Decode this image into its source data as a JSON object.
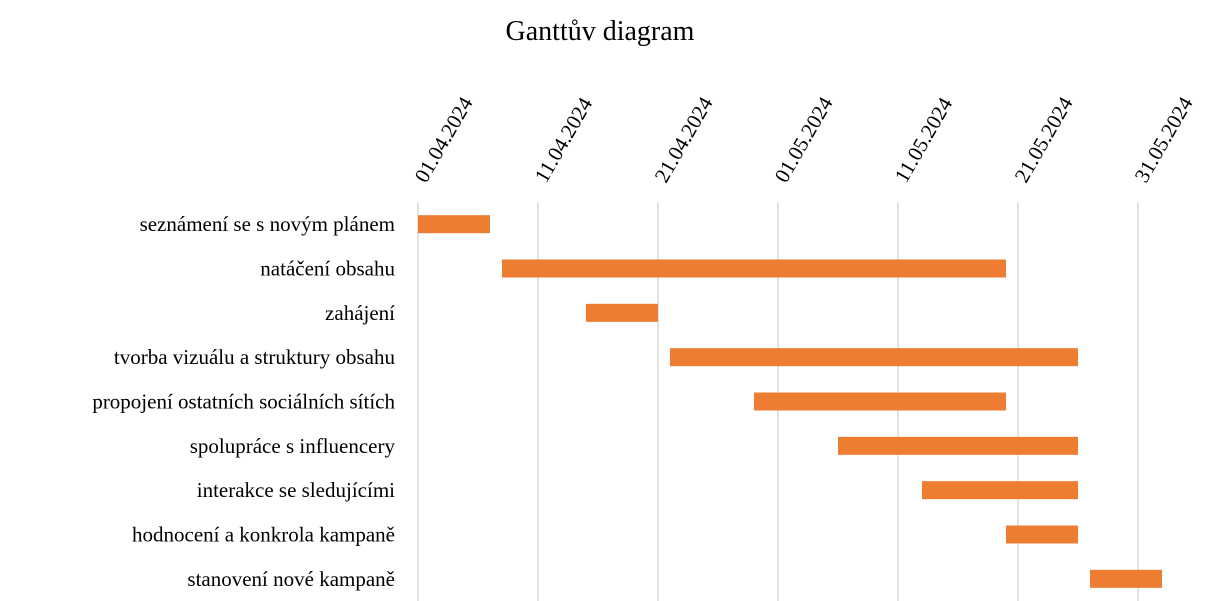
{
  "chart_data": {
    "type": "gantt",
    "title": "Ganttův diagram",
    "categories": [
      "seznámení se s novým plánem",
      "natáčení obsahu",
      "zahájení",
      "tvorba vizuálu a struktury obsahu",
      "propojení ostatních sociálních sítích",
      "spolupráce s influencery",
      "interakce se sledujícími",
      "hodnocení a konkrola kampaně",
      "stanovení nové kampaně"
    ],
    "starts": [
      "2024-04-01",
      "2024-04-08",
      "2024-04-15",
      "2024-04-22",
      "2024-04-29",
      "2024-05-06",
      "2024-05-13",
      "2024-05-20",
      "2024-05-27"
    ],
    "ends": [
      "2024-04-07",
      "2024-05-20",
      "2024-04-21",
      "2024-05-26",
      "2024-05-20",
      "2024-05-26",
      "2024-05-26",
      "2024-05-26",
      "2024-06-02"
    ],
    "color": "#ed7d31",
    "xlim": [
      "2024-04-01",
      "2024-06-03"
    ],
    "xticks": [
      {
        "value": "2024-04-01",
        "label": "01.04.2024"
      },
      {
        "value": "2024-04-11",
        "label": "11.04.2024"
      },
      {
        "value": "2024-04-21",
        "label": "21.04.2024"
      },
      {
        "value": "2024-05-01",
        "label": "01.05.2024"
      },
      {
        "value": "2024-05-11",
        "label": "11.05.2024"
      },
      {
        "value": "2024-05-21",
        "label": "21.05.2024"
      },
      {
        "value": "2024-05-31",
        "label": "31.05.2024"
      }
    ],
    "grid": true
  }
}
